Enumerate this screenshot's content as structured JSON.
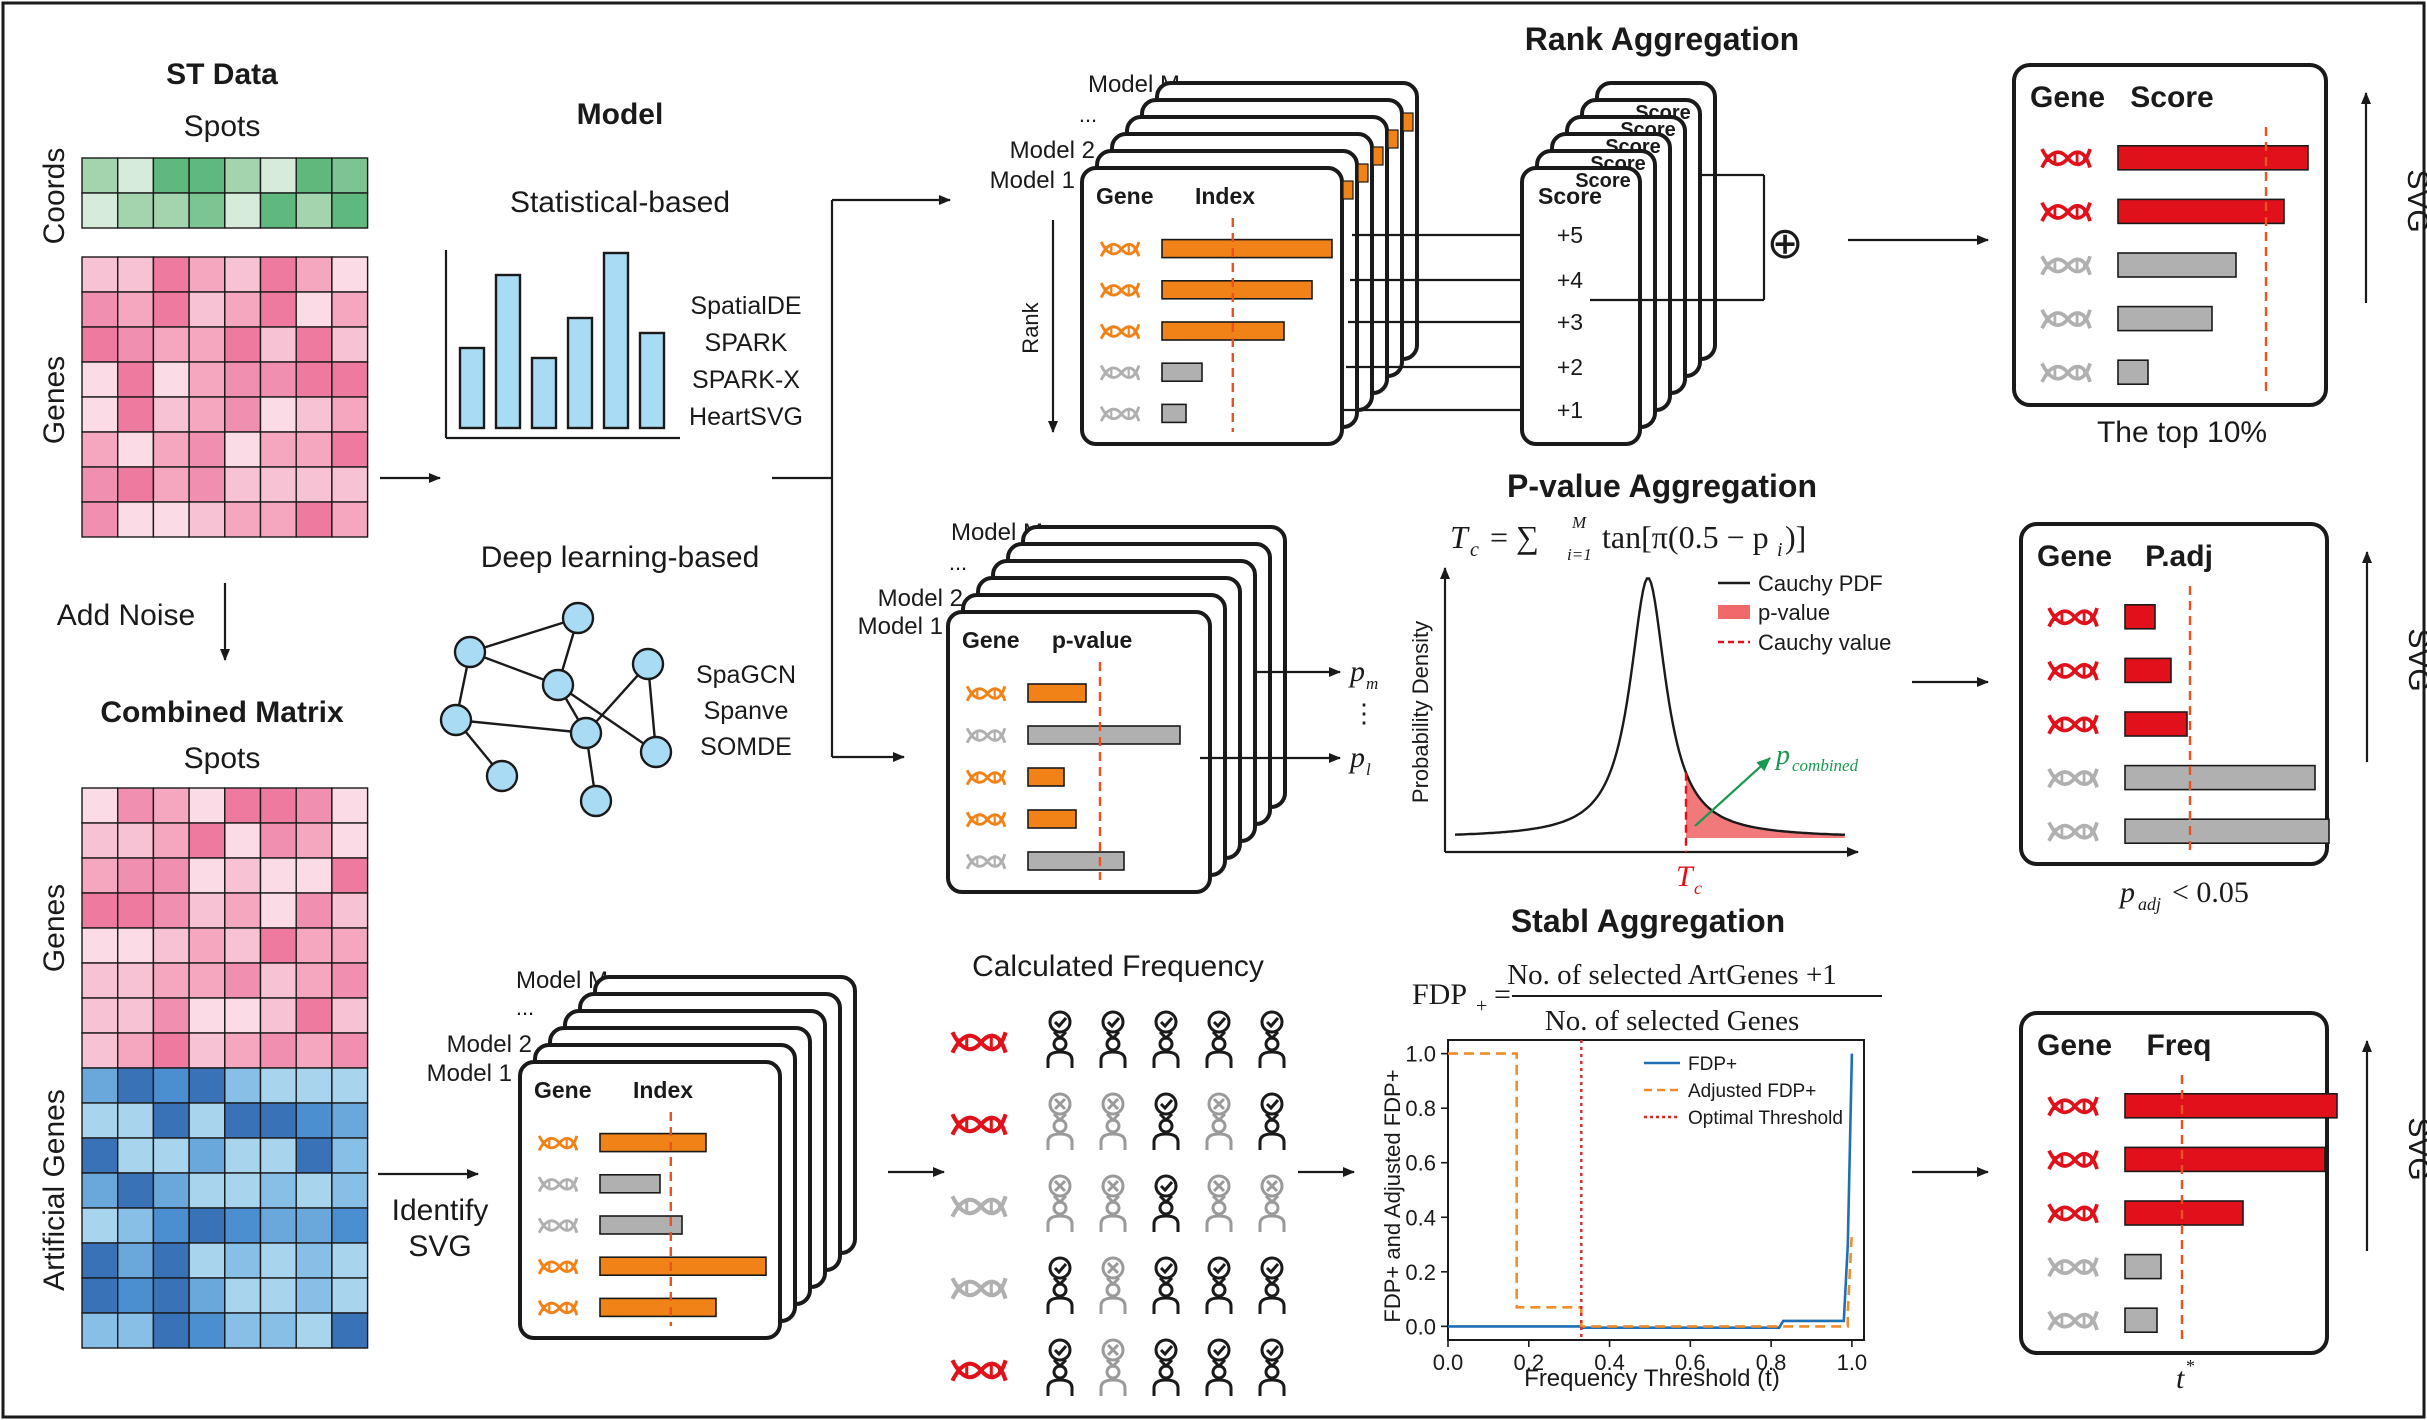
{
  "st_data": {
    "title": "ST Data",
    "spots_label": "Spots",
    "coords_label": "Coords",
    "genes_label": "Genes",
    "add_noise_label": "Add Noise"
  },
  "combined_matrix": {
    "title": "Combined Matrix",
    "spots_label": "Spots",
    "genes_label": "Genes",
    "artificial_label": "Artificial Genes",
    "identify_line1": "Identify",
    "identify_line2": "SVG"
  },
  "model": {
    "title": "Model",
    "statistical_label": "Statistical-based",
    "statistical_methods": [
      "SpatialDE",
      "SPARK",
      "SPARK-X",
      "HeartSVG"
    ],
    "deep_label": "Deep learning-based",
    "deep_methods": [
      "SpaGCN",
      "Spanve",
      "SOMDE"
    ]
  },
  "stacks": {
    "model_m": "Model M",
    "model_2": "Model 2",
    "model_1": "Model 1",
    "ellipsis": "...",
    "gene_header": "Gene",
    "index_header": "Index",
    "pvalue_header": "p-value",
    "rank_label": "Rank",
    "p_m": "p",
    "p_m_sub": "m",
    "p_1": "p",
    "p_1_sub": "l",
    "vdots": "⋮"
  },
  "rank_aggregation": {
    "title": "Rank Aggregation",
    "score_header": "Score",
    "scores": [
      "+5",
      "+4",
      "+3",
      "+2",
      "+1"
    ],
    "plus_symbol": "⊕"
  },
  "pvalue_aggregation": {
    "title": "P-value Aggregation",
    "formula_lhs": "T",
    "formula_lhs_sub": "c",
    "formula_sum": "= ∑",
    "formula_sum_top": "M",
    "formula_sum_bottom": "i=1",
    "formula_body": "tan[π(0.5 − p",
    "formula_body_sub": "i",
    "formula_close": ")]",
    "ylabel": "Probability Density",
    "legend": [
      "Cauchy PDF",
      "p-value",
      "Cauchy value"
    ],
    "tc_label": "T",
    "tc_sub": "c",
    "p_combined": "p",
    "p_combined_sub": "combined"
  },
  "stabl_aggregation": {
    "title": "Stabl Aggregation",
    "fdp_lhs": "FDP",
    "fdp_lhs_sub": "+",
    "eq": "=",
    "numerator": "No. of selected ArtGenes +1",
    "denominator": "No. of selected Genes",
    "calc_freq_title": "Calculated Frequency"
  },
  "chart_data": {
    "type": "line",
    "xlabel": "Frequency Threshold (t)",
    "ylabel": "FDP+ and Adjusted FDP+",
    "xlim": [
      0,
      1.03
    ],
    "ylim": [
      -0.05,
      1.05
    ],
    "xticks": [
      "0.0",
      "0.2",
      "0.4",
      "0.6",
      "0.8",
      "1.0"
    ],
    "yticks": [
      "0.0",
      "0.2",
      "0.4",
      "0.6",
      "0.8",
      "1.0"
    ],
    "series": [
      {
        "name": "FDP+",
        "color": "#1f6fb5",
        "x": [
          0.0,
          0.33,
          0.33,
          0.82,
          0.83,
          0.98,
          0.99,
          1.0
        ],
        "y": [
          0.0,
          0.0,
          -0.005,
          -0.005,
          0.02,
          0.02,
          0.3,
          1.0
        ]
      },
      {
        "name": "Adjusted FDP+",
        "color": "#f08c2a",
        "x": [
          0.0,
          0.17,
          0.17,
          0.33,
          0.33,
          0.99,
          0.99,
          1.0
        ],
        "y": [
          1.0,
          1.0,
          0.07,
          0.07,
          0.0,
          0.0,
          0.05,
          0.35
        ]
      }
    ],
    "optimal_threshold": {
      "name": "Optimal Threshold",
      "x": 0.33,
      "color": "#d62728"
    }
  },
  "outputs": {
    "gene_header": "Gene",
    "score_header": "Score",
    "padj_header": "P.adj",
    "freq_header": "Freq",
    "svg_label": "SVG",
    "top10": "The top 10%",
    "padj_p": "p",
    "padj_sub": "adj",
    "padj_rest": "< 0.05",
    "tstar": "t",
    "tstar_sup": "*"
  },
  "colors": {
    "orange": "#f08218",
    "red": "#e0111b",
    "gray": "#b0b0b0",
    "green": "#1a9850",
    "pink": "#f08caa",
    "blue": "#4c8fd0"
  }
}
